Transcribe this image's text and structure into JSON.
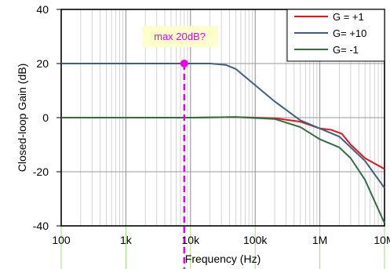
{
  "chart_data": {
    "type": "line",
    "title": "",
    "xlabel": "Frequency (Hz)",
    "ylabel": "Closed-loop Gain (dB)",
    "xscale": "log",
    "xlim": [
      100,
      10000000
    ],
    "ylim": [
      -40,
      40
    ],
    "grid": true,
    "legend_position": "top-right",
    "x_ticks": [
      {
        "value": 100,
        "label": "100"
      },
      {
        "value": 1000,
        "label": "1k"
      },
      {
        "value": 10000,
        "label": "10k"
      },
      {
        "value": 100000,
        "label": "100k"
      },
      {
        "value": 1000000,
        "label": "1M"
      },
      {
        "value": 10000000,
        "label": "10M"
      }
    ],
    "y_ticks": [
      {
        "value": 40,
        "label": "40"
      },
      {
        "value": 20,
        "label": "20"
      },
      {
        "value": 0,
        "label": "0"
      },
      {
        "value": -20,
        "label": "-20"
      },
      {
        "value": -40,
        "label": "-40"
      }
    ],
    "series": [
      {
        "name": "G = +1",
        "color": "#e8141c",
        "points": [
          [
            100,
            0
          ],
          [
            10000,
            0
          ],
          [
            50000,
            0.2
          ],
          [
            200000,
            -0.2
          ],
          [
            500000,
            -1.5
          ],
          [
            1000000,
            -4
          ],
          [
            1500000,
            -4.5
          ],
          [
            2200000,
            -6
          ],
          [
            3000000,
            -10
          ],
          [
            5000000,
            -15
          ],
          [
            10000000,
            -19
          ]
        ]
      },
      {
        "name": "G= +10",
        "color": "#3f5f80",
        "points": [
          [
            100,
            20
          ],
          [
            20000,
            20
          ],
          [
            35000,
            19.5
          ],
          [
            50000,
            18
          ],
          [
            100000,
            12
          ],
          [
            200000,
            6
          ],
          [
            500000,
            -1
          ],
          [
            1000000,
            -4
          ],
          [
            2000000,
            -7
          ],
          [
            3000000,
            -11
          ],
          [
            5000000,
            -16
          ],
          [
            10000000,
            -26
          ]
        ]
      },
      {
        "name": "G= -1",
        "color": "#2f6e40",
        "points": [
          [
            100,
            0
          ],
          [
            10000,
            0
          ],
          [
            50000,
            0.2
          ],
          [
            200000,
            -0.5
          ],
          [
            500000,
            -3.5
          ],
          [
            1000000,
            -8
          ],
          [
            2000000,
            -11
          ],
          [
            3000000,
            -15
          ],
          [
            5000000,
            -23
          ],
          [
            10000000,
            -39
          ]
        ]
      }
    ],
    "annotation": {
      "text": "max 20dB?",
      "x": 8000,
      "y": 20,
      "color": "#ee00ee",
      "box_color": "#ffffcc"
    }
  }
}
